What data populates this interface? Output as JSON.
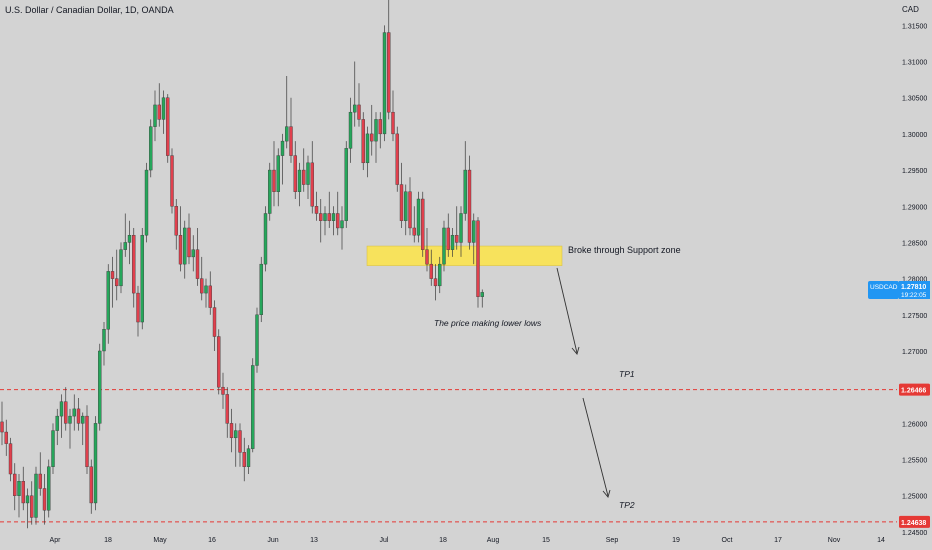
{
  "symbol_title": "U.S. Dollar / Canadian Dollar, 1D, OANDA",
  "currency": "CAD",
  "price_tag": {
    "symbol": "USDCAD",
    "price": "1.27810",
    "countdown": "19:22:05"
  },
  "colors": {
    "background": "#d3d3d3",
    "up": "#26a65b",
    "down": "#e0404d",
    "level_line": "#e53935",
    "zone_fill": "#f7e25c",
    "price_tag_bg": "#2196f3",
    "text": "#131722"
  },
  "annotations": {
    "zone_label": "Broke through Support zone",
    "lower_lows": "The price making lower lows",
    "tp1": "TP1",
    "tp2": "TP2"
  },
  "levels": [
    {
      "name": "TP1",
      "price": 1.26466,
      "label": "1.26466"
    },
    {
      "name": "TP2",
      "price": 1.24638,
      "label": "1.24638"
    }
  ],
  "chart_data": {
    "type": "candlestick",
    "title": "U.S. Dollar / Canadian Dollar, 1D, OANDA",
    "ylim": [
      1.2425,
      1.3185
    ],
    "y_ticks": [
      "1.24500",
      "1.25000",
      "1.25500",
      "1.26000",
      "1.26500",
      "1.27000",
      "1.27500",
      "1.28000",
      "1.28500",
      "1.29000",
      "1.29500",
      "1.30000",
      "1.30500",
      "1.31000",
      "1.31500"
    ],
    "x_ticks": [
      "Apr",
      "18",
      "May",
      "16",
      "Jun",
      "13",
      "Jul",
      "18",
      "Aug",
      "15",
      "Sep",
      "19",
      "Oct",
      "17",
      "Nov",
      "14"
    ],
    "support_zone": {
      "low": 1.2818,
      "high": 1.2845
    },
    "candles": [
      [
        1.2602,
        1.263,
        1.257,
        1.2588
      ],
      [
        1.2588,
        1.2605,
        1.2555,
        1.2572
      ],
      [
        1.2572,
        1.258,
        1.252,
        1.253
      ],
      [
        1.253,
        1.2545,
        1.248,
        1.25
      ],
      [
        1.25,
        1.253,
        1.247,
        1.252
      ],
      [
        1.252,
        1.254,
        1.248,
        1.249
      ],
      [
        1.249,
        1.251,
        1.2455,
        1.25
      ],
      [
        1.25,
        1.252,
        1.246,
        1.247
      ],
      [
        1.247,
        1.254,
        1.246,
        1.253
      ],
      [
        1.253,
        1.256,
        1.25,
        1.251
      ],
      [
        1.251,
        1.253,
        1.246,
        1.248
      ],
      [
        1.248,
        1.255,
        1.247,
        1.254
      ],
      [
        1.254,
        1.26,
        1.253,
        1.259
      ],
      [
        1.259,
        1.262,
        1.257,
        1.261
      ],
      [
        1.261,
        1.264,
        1.258,
        1.263
      ],
      [
        1.263,
        1.265,
        1.259,
        1.26
      ],
      [
        1.26,
        1.262,
        1.2565,
        1.261
      ],
      [
        1.261,
        1.264,
        1.259,
        1.262
      ],
      [
        1.262,
        1.2635,
        1.259,
        1.26
      ],
      [
        1.26,
        1.2615,
        1.257,
        1.261
      ],
      [
        1.261,
        1.2625,
        1.253,
        1.254
      ],
      [
        1.254,
        1.255,
        1.2475,
        1.249
      ],
      [
        1.249,
        1.261,
        1.248,
        1.26
      ],
      [
        1.26,
        1.271,
        1.259,
        1.27
      ],
      [
        1.27,
        1.274,
        1.268,
        1.273
      ],
      [
        1.273,
        1.282,
        1.271,
        1.281
      ],
      [
        1.281,
        1.283,
        1.276,
        1.28
      ],
      [
        1.28,
        1.284,
        1.277,
        1.279
      ],
      [
        1.279,
        1.285,
        1.278,
        1.284
      ],
      [
        1.284,
        1.289,
        1.283,
        1.285
      ],
      [
        1.285,
        1.288,
        1.282,
        1.286
      ],
      [
        1.286,
        1.287,
        1.276,
        1.278
      ],
      [
        1.278,
        1.279,
        1.272,
        1.274
      ],
      [
        1.274,
        1.287,
        1.273,
        1.286
      ],
      [
        1.286,
        1.296,
        1.285,
        1.295
      ],
      [
        1.295,
        1.302,
        1.294,
        1.301
      ],
      [
        1.301,
        1.306,
        1.299,
        1.304
      ],
      [
        1.304,
        1.307,
        1.301,
        1.302
      ],
      [
        1.302,
        1.306,
        1.3,
        1.305
      ],
      [
        1.305,
        1.3055,
        1.296,
        1.297
      ],
      [
        1.297,
        1.298,
        1.289,
        1.29
      ],
      [
        1.29,
        1.291,
        1.284,
        1.286
      ],
      [
        1.286,
        1.29,
        1.281,
        1.282
      ],
      [
        1.282,
        1.288,
        1.28,
        1.287
      ],
      [
        1.287,
        1.289,
        1.282,
        1.283
      ],
      [
        1.283,
        1.286,
        1.281,
        1.284
      ],
      [
        1.284,
        1.287,
        1.279,
        1.28
      ],
      [
        1.28,
        1.283,
        1.277,
        1.278
      ],
      [
        1.278,
        1.28,
        1.276,
        1.279
      ],
      [
        1.279,
        1.281,
        1.275,
        1.276
      ],
      [
        1.276,
        1.277,
        1.27,
        1.272
      ],
      [
        1.272,
        1.273,
        1.264,
        1.265
      ],
      [
        1.265,
        1.267,
        1.262,
        1.264
      ],
      [
        1.264,
        1.265,
        1.258,
        1.26
      ],
      [
        1.26,
        1.262,
        1.256,
        1.258
      ],
      [
        1.258,
        1.26,
        1.254,
        1.259
      ],
      [
        1.259,
        1.26,
        1.254,
        1.256
      ],
      [
        1.256,
        1.258,
        1.252,
        1.254
      ],
      [
        1.254,
        1.257,
        1.253,
        1.2565
      ],
      [
        1.2565,
        1.269,
        1.256,
        1.268
      ],
      [
        1.268,
        1.276,
        1.267,
        1.275
      ],
      [
        1.275,
        1.283,
        1.274,
        1.282
      ],
      [
        1.282,
        1.29,
        1.281,
        1.289
      ],
      [
        1.289,
        1.296,
        1.288,
        1.295
      ],
      [
        1.295,
        1.299,
        1.29,
        1.292
      ],
      [
        1.292,
        1.298,
        1.29,
        1.297
      ],
      [
        1.297,
        1.3,
        1.293,
        1.299
      ],
      [
        1.299,
        1.308,
        1.298,
        1.301
      ],
      [
        1.301,
        1.305,
        1.296,
        1.297
      ],
      [
        1.297,
        1.299,
        1.291,
        1.292
      ],
      [
        1.292,
        1.296,
        1.29,
        1.295
      ],
      [
        1.295,
        1.298,
        1.292,
        1.293
      ],
      [
        1.293,
        1.297,
        1.291,
        1.296
      ],
      [
        1.296,
        1.299,
        1.289,
        1.29
      ],
      [
        1.29,
        1.292,
        1.288,
        1.289
      ],
      [
        1.289,
        1.291,
        1.285,
        1.288
      ],
      [
        1.288,
        1.29,
        1.286,
        1.289
      ],
      [
        1.289,
        1.292,
        1.287,
        1.288
      ],
      [
        1.288,
        1.29,
        1.286,
        1.289
      ],
      [
        1.289,
        1.292,
        1.286,
        1.287
      ],
      [
        1.287,
        1.29,
        1.284,
        1.288
      ],
      [
        1.288,
        1.299,
        1.287,
        1.298
      ],
      [
        1.298,
        1.305,
        1.296,
        1.303
      ],
      [
        1.303,
        1.31,
        1.301,
        1.304
      ],
      [
        1.304,
        1.307,
        1.301,
        1.302
      ],
      [
        1.302,
        1.303,
        1.295,
        1.296
      ],
      [
        1.296,
        1.301,
        1.294,
        1.3
      ],
      [
        1.3,
        1.304,
        1.297,
        1.299
      ],
      [
        1.299,
        1.303,
        1.296,
        1.302
      ],
      [
        1.302,
        1.303,
        1.298,
        1.3
      ],
      [
        1.3,
        1.315,
        1.299,
        1.314
      ],
      [
        1.314,
        1.321,
        1.302,
        1.303
      ],
      [
        1.303,
        1.306,
        1.299,
        1.3
      ],
      [
        1.3,
        1.301,
        1.292,
        1.293
      ],
      [
        1.293,
        1.296,
        1.287,
        1.288
      ],
      [
        1.288,
        1.293,
        1.286,
        1.292
      ],
      [
        1.292,
        1.294,
        1.286,
        1.287
      ],
      [
        1.287,
        1.29,
        1.285,
        1.286
      ],
      [
        1.286,
        1.292,
        1.285,
        1.291
      ],
      [
        1.291,
        1.292,
        1.283,
        1.284
      ],
      [
        1.284,
        1.287,
        1.281,
        1.282
      ],
      [
        1.282,
        1.284,
        1.279,
        1.28
      ],
      [
        1.28,
        1.282,
        1.277,
        1.279
      ],
      [
        1.279,
        1.283,
        1.278,
        1.282
      ],
      [
        1.282,
        1.288,
        1.281,
        1.287
      ],
      [
        1.287,
        1.289,
        1.283,
        1.284
      ],
      [
        1.284,
        1.287,
        1.283,
        1.286
      ],
      [
        1.286,
        1.29,
        1.284,
        1.285
      ],
      [
        1.285,
        1.29,
        1.283,
        1.289
      ],
      [
        1.289,
        1.299,
        1.288,
        1.295
      ],
      [
        1.295,
        1.297,
        1.284,
        1.285
      ],
      [
        1.285,
        1.289,
        1.282,
        1.288
      ],
      [
        1.288,
        1.2885,
        1.276,
        1.2775
      ],
      [
        1.2775,
        1.2785,
        1.276,
        1.2781
      ]
    ]
  }
}
